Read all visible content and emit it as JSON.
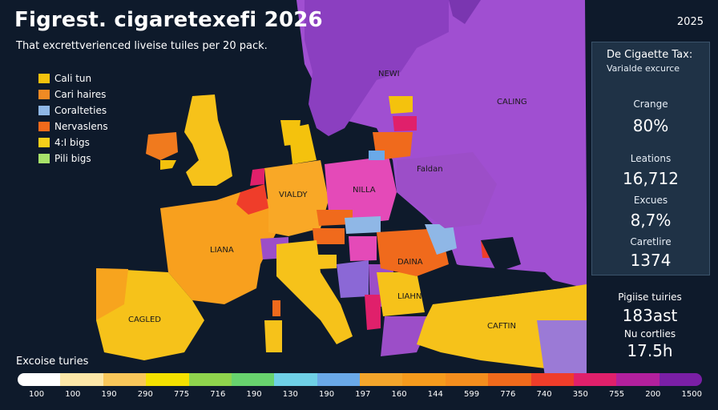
{
  "header": {
    "title": "Figrest. cigaretexefi 2026",
    "subtitle": "That excrettverienced liveise tuiles per 20 pack.",
    "year": "2025"
  },
  "legend": [
    {
      "label": "Cali tun",
      "color": "#f4c20d"
    },
    {
      "label": "Cari haires",
      "color": "#f08a24"
    },
    {
      "label": "Coralteties",
      "color": "#8fb7e6"
    },
    {
      "label": "Nervaslens",
      "color": "#f26a1b"
    },
    {
      "label": "4:I bigs",
      "color": "#f6cf1a"
    },
    {
      "label": "Pili bigs",
      "color": "#a7e26a"
    }
  ],
  "map_labels": {
    "newi": "NEWI",
    "caling": "CALING",
    "vialdy": "VIALDY",
    "nilla": "NILLA",
    "liana": "LIANA",
    "daina": "DAINA",
    "liahn": "LIAHN",
    "cafitn": "CAFTIN",
    "caglied": "CAGLED",
    "faldan": "Faldan"
  },
  "panel": {
    "title": "De Cigaette Tax:",
    "subtitle": "Varialde excurce",
    "stats": [
      {
        "label": "Crange",
        "value": "80%"
      },
      {
        "label": "Leations",
        "value": "16,712"
      },
      {
        "label": "Excues",
        "value": "8,7%"
      },
      {
        "label": "Caretlire",
        "value": "1374"
      }
    ],
    "extra_label": "Pigiise tuiries",
    "extra_value": "183ast",
    "extra2_label": "Nu cortlies",
    "extra2_value": "17.5h"
  },
  "scale": {
    "title": "Excoise turies",
    "colors": [
      "#ffffff",
      "#fde7a8",
      "#f9c75a",
      "#f4e100",
      "#8fd44d",
      "#68d36e",
      "#6fd0e6",
      "#6aa9e8",
      "#f3a52b",
      "#f59b1d",
      "#f48e1e",
      "#f06a1c",
      "#ef3d2a",
      "#e0206b",
      "#b2209d",
      "#7a1fa6"
    ],
    "ticks": [
      "100",
      "100",
      "190",
      "290",
      "775",
      "716",
      "190",
      "130",
      "190",
      "197",
      "160",
      "144",
      "599",
      "776",
      "740",
      "350",
      "755",
      "200",
      "1500"
    ]
  }
}
